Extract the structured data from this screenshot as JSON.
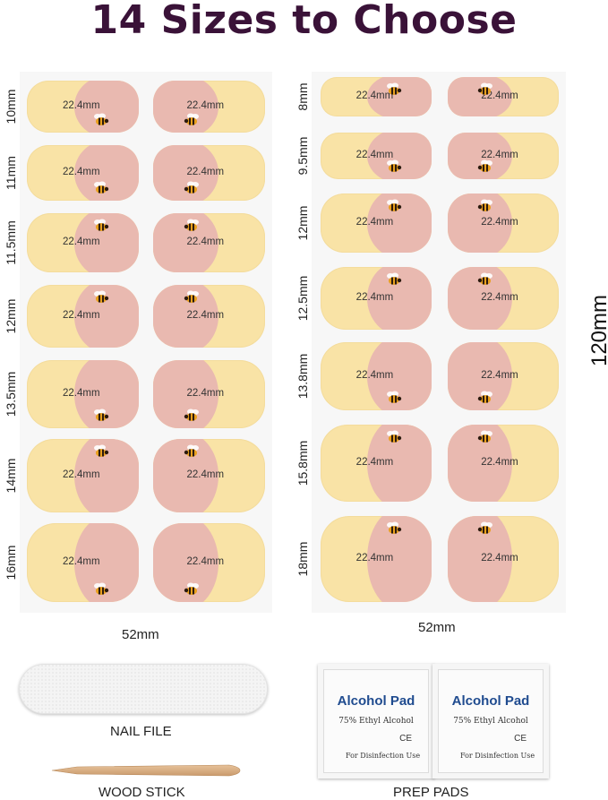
{
  "title": "14 Sizes to Choose",
  "nail_length_label": "22.4mm",
  "left_sheet": {
    "sizes": [
      "10mm",
      "11mm",
      "11.5mm",
      "12mm",
      "13.5mm",
      "14mm",
      "16mm"
    ],
    "width_label": "52mm"
  },
  "right_sheet": {
    "sizes": [
      "8mm",
      "9.5mm",
      "12mm",
      "12.5mm",
      "13.8mm",
      "15.8mm",
      "18mm"
    ],
    "width_label": "52mm",
    "height_label": "120mm"
  },
  "colors": {
    "title": "#3a1238",
    "nail_base": "#f9e3a6",
    "nail_pink": "#e9b9b0",
    "pad_text": "#1f4b8f"
  },
  "accessories": {
    "nail_file": "NAIL FILE",
    "wood_stick": "WOOD STICK",
    "prep_pads": "PREP PADS",
    "pad": {
      "title": "Alcohol Pad",
      "subtitle": "75% Ethyl Alcohol",
      "footer": "For Disinfection Use",
      "mark": "CE"
    }
  },
  "icons": [
    "bee-icon"
  ]
}
